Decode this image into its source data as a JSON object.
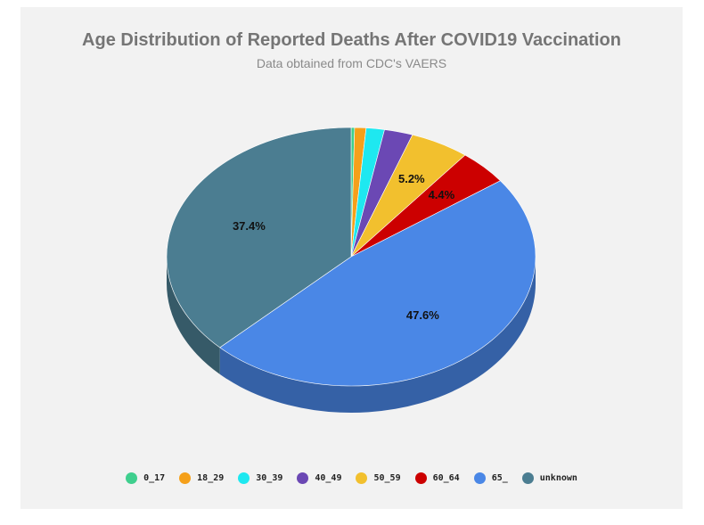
{
  "chart_data": {
    "type": "pie",
    "title": "Age Distribution of Reported Deaths After COVID19 Vaccination",
    "subtitle": "Data obtained from CDC's VAERS",
    "legend_position": "bottom",
    "three_d": true,
    "slices": [
      {
        "label": "0_17",
        "value": 0.3,
        "color": "#3fcf8e",
        "shown_label": ""
      },
      {
        "label": "18_29",
        "value": 1.0,
        "color": "#f5a01a",
        "shown_label": ""
      },
      {
        "label": "30_39",
        "value": 1.6,
        "color": "#1ee8f0",
        "shown_label": ""
      },
      {
        "label": "40_49",
        "value": 2.5,
        "color": "#6b48b4",
        "shown_label": ""
      },
      {
        "label": "50_59",
        "value": 5.2,
        "color": "#f2c02e",
        "shown_label": "5.2%"
      },
      {
        "label": "60_64",
        "value": 4.4,
        "color": "#cc0000",
        "shown_label": "4.4%"
      },
      {
        "label": "65_",
        "value": 47.6,
        "color": "#4a87e6",
        "shown_label": "47.6%"
      },
      {
        "label": "unknown",
        "value": 37.4,
        "color": "#4b7d91",
        "shown_label": "37.4%"
      }
    ]
  }
}
